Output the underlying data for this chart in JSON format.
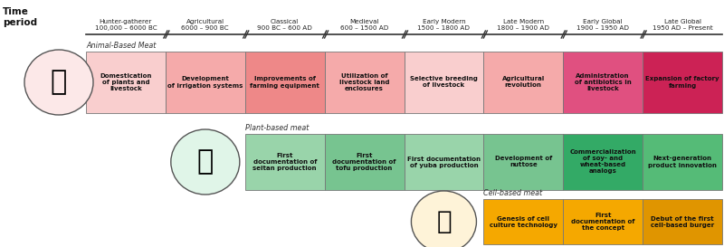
{
  "time_periods": [
    "Hunter-gatherer\n100,000 – 6000 BC",
    "Agricultural\n6000 – 900 BC",
    "Classical\n900 BC – 600 AD",
    "Medieval\n600 – 1500 AD",
    "Early Modern\n1500 – 1800 AD",
    "Late Modern\n1800 – 1900 AD",
    "Early Global\n1900 – 1950 AD",
    "Late Global\n1950 AD – Present"
  ],
  "animal_label": "Animal-Based Meat",
  "animal_cells": [
    {
      "col": 0,
      "text": "Domestication\nof plants and\nlivestock",
      "color": "#f9cece"
    },
    {
      "col": 1,
      "text": "Development\nof irrigation systems",
      "color": "#f5aaaa"
    },
    {
      "col": 2,
      "text": "Improvements of\nfarming equipment",
      "color": "#ee8888"
    },
    {
      "col": 3,
      "text": "Utilization of\nlivestock land\nenclosures",
      "color": "#f5aaaa"
    },
    {
      "col": 4,
      "text": "Selective breeding\nof livestock",
      "color": "#f9cece"
    },
    {
      "col": 5,
      "text": "Agricultural\nrevolution",
      "color": "#f5aaaa"
    },
    {
      "col": 6,
      "text": "Administration\nof antibiotics in\nlivestock",
      "color": "#e05080"
    },
    {
      "col": 7,
      "text": "Expansion of factory\nfarming",
      "color": "#cc2255"
    }
  ],
  "plant_label": "Plant-based meat",
  "plant_cells": [
    {
      "col": 2,
      "text": "First\ndocumentation of\nseitan production",
      "color": "#99d4aa"
    },
    {
      "col": 3,
      "text": "First\ndocumentation of\ntofu production",
      "color": "#77c490"
    },
    {
      "col": 4,
      "text": "First documentation\nof yuba production",
      "color": "#99d4aa"
    },
    {
      "col": 5,
      "text": "Development of\nnuttose",
      "color": "#77c490"
    },
    {
      "col": 6,
      "text": "Commercialization\nof soy- and\nwheat-based\nanalogs",
      "color": "#33aa66"
    },
    {
      "col": 7,
      "text": "Next-generation\nproduct innovation",
      "color": "#55bb77"
    }
  ],
  "cell_label": "Cell-based meat",
  "cell_cells": [
    {
      "col": 5,
      "text": "Genesis of cell\nculture technology",
      "color": "#f5a800"
    },
    {
      "col": 6,
      "text": "First\ndocumentation of\nthe concept",
      "color": "#f5a800"
    },
    {
      "col": 7,
      "text": "Debut of the first\ncell-based burger",
      "color": "#e09500"
    }
  ],
  "animal_icon_color": "#fce8e8",
  "plant_icon_color": "#e0f5e8",
  "cell_icon_color": "#fef3d8",
  "bg_color": "#ffffff",
  "text_color": "#222222",
  "border_color": "#777777"
}
